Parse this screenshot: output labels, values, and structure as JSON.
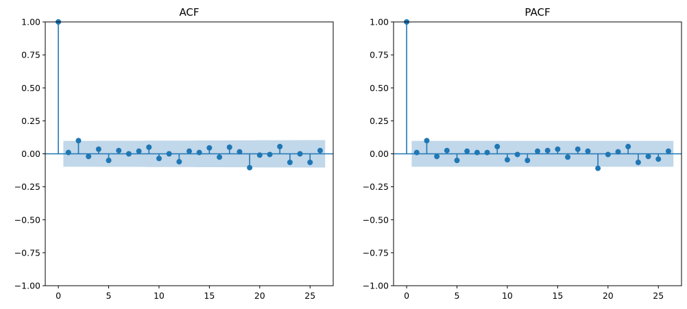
{
  "chart_data": [
    {
      "type": "stem",
      "title": "ACF",
      "xlabel": "",
      "ylabel": "",
      "xlim": [
        -1.3,
        27.3
      ],
      "ylim": [
        -1.0,
        1.0
      ],
      "xticks": [
        0,
        5,
        10,
        15,
        20,
        25
      ],
      "xtick_labels": [
        "0",
        "5",
        "10",
        "15",
        "20",
        "25"
      ],
      "yticks": [
        -1.0,
        -0.75,
        -0.5,
        -0.25,
        0.0,
        0.25,
        0.5,
        0.75,
        1.0
      ],
      "ytick_labels": [
        "−1.00",
        "−0.75",
        "−0.50",
        "−0.25",
        "0.00",
        "0.25",
        "0.50",
        "0.75",
        "1.00"
      ],
      "lags": [
        0,
        1,
        2,
        3,
        4,
        5,
        6,
        7,
        8,
        9,
        10,
        11,
        12,
        13,
        14,
        15,
        16,
        17,
        18,
        19,
        20,
        21,
        22,
        23,
        24,
        25,
        26
      ],
      "values": [
        1.0,
        0.01,
        0.1,
        -0.02,
        0.035,
        -0.05,
        0.025,
        0.0,
        0.02,
        0.05,
        -0.035,
        0.0,
        -0.06,
        0.02,
        0.01,
        0.045,
        -0.025,
        0.05,
        0.015,
        -0.105,
        -0.01,
        -0.005,
        0.055,
        -0.065,
        0.0,
        -0.065,
        0.025
      ],
      "confint_lags": [
        0.5,
        1,
        2,
        3,
        4,
        5,
        6,
        7,
        8,
        9,
        10,
        11,
        12,
        13,
        14,
        15,
        16,
        17,
        18,
        19,
        20,
        21,
        22,
        23,
        24,
        25,
        26,
        26.5
      ],
      "confint_upper": [
        0.098,
        0.098,
        0.098,
        0.098,
        0.099,
        0.099,
        0.099,
        0.099,
        0.099,
        0.1,
        0.1,
        0.1,
        0.1,
        0.1,
        0.101,
        0.101,
        0.101,
        0.102,
        0.102,
        0.102,
        0.103,
        0.103,
        0.103,
        0.103,
        0.104,
        0.104,
        0.104,
        0.104
      ],
      "grid": false,
      "colors": {
        "stem": "#1f77b4",
        "band": "#c1d7ea",
        "zero_line": "#1f77b4",
        "axes": "#000000"
      }
    },
    {
      "type": "stem",
      "title": "PACF",
      "xlabel": "",
      "ylabel": "",
      "xlim": [
        -1.3,
        27.3
      ],
      "ylim": [
        -1.0,
        1.0
      ],
      "xticks": [
        0,
        5,
        10,
        15,
        20,
        25
      ],
      "xtick_labels": [
        "0",
        "5",
        "10",
        "15",
        "20",
        "25"
      ],
      "yticks": [
        -1.0,
        -0.75,
        -0.5,
        -0.25,
        0.0,
        0.25,
        0.5,
        0.75,
        1.0
      ],
      "ytick_labels": [
        "−1.00",
        "−0.75",
        "−0.50",
        "−0.25",
        "0.00",
        "0.25",
        "0.50",
        "0.75",
        "1.00"
      ],
      "lags": [
        0,
        1,
        2,
        3,
        4,
        5,
        6,
        7,
        8,
        9,
        10,
        11,
        12,
        13,
        14,
        15,
        16,
        17,
        18,
        19,
        20,
        21,
        22,
        23,
        24,
        25,
        26
      ],
      "values": [
        1.0,
        0.01,
        0.1,
        -0.02,
        0.025,
        -0.05,
        0.02,
        0.01,
        0.01,
        0.055,
        -0.045,
        -0.005,
        -0.05,
        0.02,
        0.025,
        0.035,
        -0.025,
        0.035,
        0.02,
        -0.11,
        -0.005,
        0.015,
        0.055,
        -0.065,
        -0.02,
        -0.04,
        0.02
      ],
      "confint_lags": [
        0.5,
        1,
        2,
        3,
        4,
        5,
        6,
        7,
        8,
        9,
        10,
        11,
        12,
        13,
        14,
        15,
        16,
        17,
        18,
        19,
        20,
        21,
        22,
        23,
        24,
        25,
        26,
        26.5
      ],
      "confint_upper": [
        0.098,
        0.098,
        0.098,
        0.098,
        0.098,
        0.098,
        0.098,
        0.098,
        0.098,
        0.098,
        0.098,
        0.098,
        0.098,
        0.098,
        0.098,
        0.098,
        0.098,
        0.098,
        0.098,
        0.098,
        0.098,
        0.098,
        0.098,
        0.098,
        0.098,
        0.098,
        0.098,
        0.098
      ],
      "grid": false,
      "colors": {
        "stem": "#1f77b4",
        "band": "#c1d7ea",
        "zero_line": "#1f77b4",
        "axes": "#000000"
      }
    }
  ]
}
